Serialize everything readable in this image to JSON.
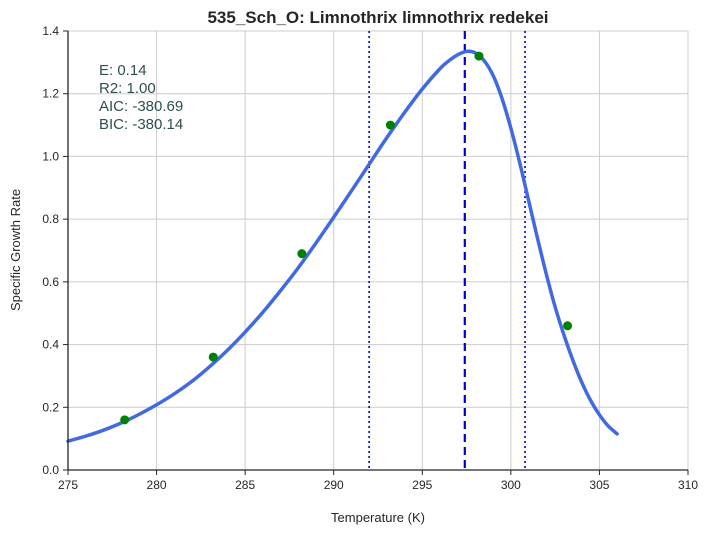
{
  "chart_data": {
    "type": "line",
    "title": "535_Sch_O: Limnothrix limnothrix redekei",
    "xlabel": "Temperature (K)",
    "ylabel": "Specific Growth Rate",
    "xlim": [
      275,
      310
    ],
    "ylim": [
      0.0,
      1.4
    ],
    "xticks": [
      275,
      280,
      285,
      290,
      295,
      300,
      305,
      310
    ],
    "yticks": [
      0.0,
      0.2,
      0.4,
      0.6,
      0.8,
      1.0,
      1.2,
      1.4
    ],
    "xtick_labels": [
      "275",
      "280",
      "285",
      "290",
      "295",
      "300",
      "305",
      "310"
    ],
    "ytick_labels": [
      "0.0",
      "0.2",
      "0.4",
      "0.6",
      "0.8",
      "1.0",
      "1.2",
      "1.4"
    ],
    "grid": true,
    "series": [
      {
        "kind": "fit-curve",
        "color": "#4169e1",
        "x": [
          275,
          276,
          277,
          278,
          279,
          280,
          281,
          282,
          283,
          284,
          285,
          286,
          287,
          288,
          289,
          290,
          291,
          292,
          293,
          294,
          295,
          296,
          296.5,
          297,
          297.5,
          298,
          298.5,
          299,
          299.5,
          300,
          300.5,
          301,
          301.5,
          302,
          302.5,
          303,
          303.5,
          304,
          304.5,
          305,
          305.5,
          306
        ],
        "y": [
          0.092,
          0.108,
          0.127,
          0.15,
          0.177,
          0.208,
          0.243,
          0.283,
          0.33,
          0.382,
          0.44,
          0.503,
          0.572,
          0.645,
          0.724,
          0.806,
          0.89,
          0.975,
          1.06,
          1.14,
          1.215,
          1.28,
          1.305,
          1.324,
          1.335,
          1.33,
          1.305,
          1.258,
          1.185,
          1.09,
          0.98,
          0.86,
          0.74,
          0.625,
          0.52,
          0.43,
          0.35,
          0.28,
          0.222,
          0.176,
          0.14,
          0.115
        ]
      },
      {
        "kind": "observations",
        "color": "#008000",
        "x": [
          278.2,
          283.2,
          288.2,
          293.2,
          298.2,
          303.2
        ],
        "y": [
          0.16,
          0.36,
          0.69,
          1.1,
          1.32,
          0.46
        ]
      }
    ],
    "vlines": [
      {
        "x": 292.0,
        "style": "dotted",
        "color": "#0000cc"
      },
      {
        "x": 297.4,
        "style": "dashed",
        "color": "#0000cc"
      },
      {
        "x": 300.8,
        "style": "dotted",
        "color": "#0000cc"
      }
    ],
    "annotations": [
      {
        "text": "E:  0.14"
      },
      {
        "text": "R2:  1.00"
      },
      {
        "text": "AIC: -380.69"
      },
      {
        "text": "BIC: -380.14"
      }
    ],
    "annotation_color": "#2f4f4f",
    "grid_color": "#cccccc",
    "axis_color": "#262626"
  }
}
